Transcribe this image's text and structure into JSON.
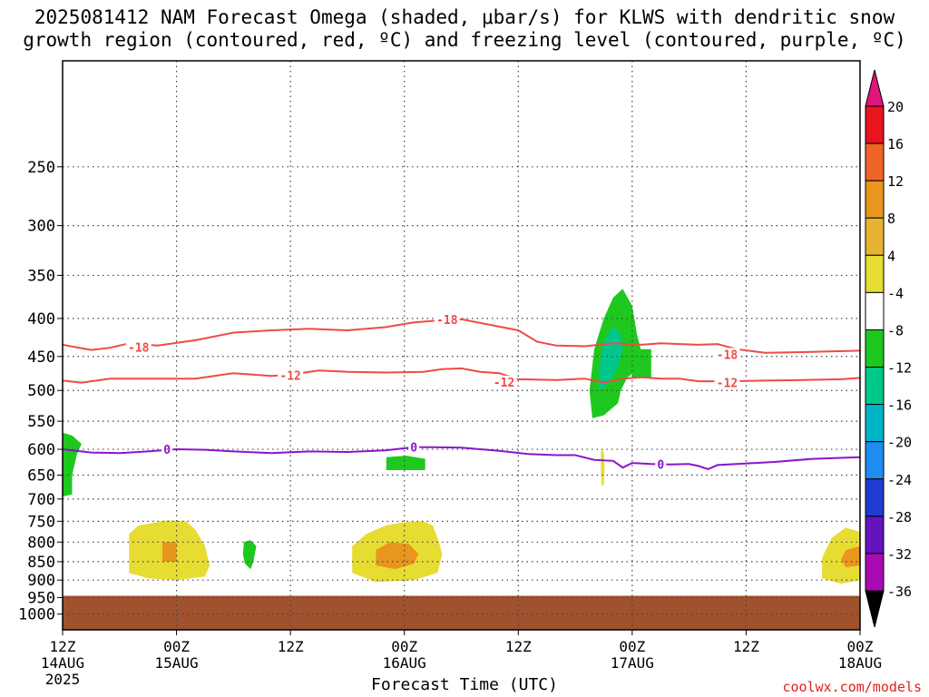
{
  "chart_data": {
    "type": "heatmap",
    "title_line1": "2025081412 NAM Forecast Omega (shaded, μbar/s) for KLWS with dendritic snow",
    "title_line2": "growth region (contoured, red, ºC) and freezing level (contoured, purple, ºC)",
    "xlabel": "Forecast Time (UTC)",
    "credit": "coolwx.com/models",
    "x_ticks": [
      {
        "t": 0,
        "top": "12Z",
        "mid": "14AUG",
        "bot": "2025"
      },
      {
        "t": 12,
        "top": "00Z",
        "mid": "15AUG",
        "bot": ""
      },
      {
        "t": 24,
        "top": "12Z",
        "mid": "",
        "bot": ""
      },
      {
        "t": 36,
        "top": "00Z",
        "mid": "16AUG",
        "bot": ""
      },
      {
        "t": 48,
        "top": "12Z",
        "mid": "",
        "bot": ""
      },
      {
        "t": 60,
        "top": "00Z",
        "mid": "17AUG",
        "bot": ""
      },
      {
        "t": 72,
        "top": "12Z",
        "mid": "",
        "bot": ""
      },
      {
        "t": 84,
        "top": "00Z",
        "mid": "18AUG",
        "bot": ""
      }
    ],
    "y_ticks": [
      250,
      300,
      350,
      400,
      450,
      500,
      550,
      600,
      650,
      700,
      750,
      800,
      850,
      900,
      950,
      1000
    ],
    "y_range_hPa": [
      1050,
      180
    ],
    "x_range_hours": [
      0,
      84
    ],
    "grid": true,
    "colorbar": {
      "labels": [
        "20",
        "16",
        "12",
        "8",
        "4",
        "-4",
        "-8",
        "-12",
        "-16",
        "-20",
        "-24",
        "-28",
        "-32",
        "-36"
      ],
      "colors": [
        "#e8141e",
        "#f06428",
        "#e8961e",
        "#e6b432",
        "#e6dc32",
        "#ffffff",
        "#1ec81e",
        "#00c88c",
        "#00b4c8",
        "#1e8cf0",
        "#1e3cd2",
        "#6414be",
        "#aa0ab4",
        "#a0a0a0"
      ],
      "top_color": "#e0147a",
      "bottom_color": "#000000"
    },
    "contours": [
      {
        "name": "-18",
        "color": "#f04a46",
        "points": [
          [
            0,
            434
          ],
          [
            3,
            441
          ],
          [
            5,
            438
          ],
          [
            7,
            432
          ],
          [
            10,
            435
          ],
          [
            14,
            428
          ],
          [
            18,
            418
          ],
          [
            22,
            415
          ],
          [
            26,
            413
          ],
          [
            30,
            415
          ],
          [
            34,
            411
          ],
          [
            37,
            405
          ],
          [
            40,
            402
          ],
          [
            42,
            401
          ],
          [
            45,
            408
          ],
          [
            48,
            415
          ],
          [
            50,
            430
          ],
          [
            52,
            435
          ],
          [
            55,
            436
          ],
          [
            58,
            432
          ],
          [
            61,
            434
          ],
          [
            63,
            432
          ],
          [
            65,
            433
          ],
          [
            67,
            434
          ],
          [
            69,
            433
          ],
          [
            71,
            440
          ],
          [
            74,
            445
          ],
          [
            78,
            444
          ],
          [
            84,
            442
          ]
        ],
        "labels": [
          {
            "t": 8.0,
            "p": 437,
            "text": "-18"
          },
          {
            "t": 40.5,
            "p": 401,
            "text": "-18"
          },
          {
            "t": 70.0,
            "p": 447,
            "text": "-18"
          }
        ]
      },
      {
        "name": "-12",
        "color": "#f04a46",
        "points": [
          [
            0,
            485
          ],
          [
            2,
            488
          ],
          [
            5,
            482
          ],
          [
            9,
            482
          ],
          [
            14,
            482
          ],
          [
            18,
            474
          ],
          [
            22,
            478
          ],
          [
            24,
            476
          ],
          [
            27,
            470
          ],
          [
            30,
            472
          ],
          [
            34,
            473
          ],
          [
            38,
            472
          ],
          [
            40,
            468
          ],
          [
            42,
            467
          ],
          [
            44,
            472
          ],
          [
            46,
            474
          ],
          [
            48,
            483
          ],
          [
            52,
            484
          ],
          [
            55,
            482
          ],
          [
            57,
            488
          ],
          [
            59,
            482
          ],
          [
            61,
            480
          ],
          [
            63,
            482
          ],
          [
            65,
            482
          ],
          [
            67,
            486
          ],
          [
            70,
            486
          ],
          [
            74,
            485
          ],
          [
            78,
            484
          ],
          [
            82,
            483
          ],
          [
            84,
            481
          ]
        ],
        "labels": [
          {
            "t": 24.0,
            "p": 477,
            "text": "-12"
          },
          {
            "t": 46.5,
            "p": 487,
            "text": "-12"
          },
          {
            "t": 70.0,
            "p": 488,
            "text": "-12"
          }
        ]
      },
      {
        "name": "0",
        "color": "#8c14c8",
        "points": [
          [
            0,
            600
          ],
          [
            3,
            606
          ],
          [
            6,
            607
          ],
          [
            9,
            604
          ],
          [
            12,
            600
          ],
          [
            15,
            601
          ],
          [
            18,
            604
          ],
          [
            22,
            607
          ],
          [
            26,
            604
          ],
          [
            30,
            605
          ],
          [
            34,
            602
          ],
          [
            37,
            596
          ],
          [
            39,
            596
          ],
          [
            42,
            597
          ],
          [
            46,
            603
          ],
          [
            49,
            609
          ],
          [
            52,
            611
          ],
          [
            54,
            611
          ],
          [
            56,
            620
          ],
          [
            58,
            622
          ],
          [
            59,
            635
          ],
          [
            60,
            626
          ],
          [
            62,
            628
          ],
          [
            64,
            629
          ],
          [
            66,
            628
          ],
          [
            67,
            632
          ],
          [
            68,
            638
          ],
          [
            69,
            630
          ],
          [
            71,
            628
          ],
          [
            75,
            624
          ],
          [
            79,
            618
          ],
          [
            84,
            615
          ]
        ],
        "labels": [
          {
            "t": 11.0,
            "p": 600,
            "text": "0"
          },
          {
            "t": 37.0,
            "p": 596,
            "text": "0"
          },
          {
            "t": 63.0,
            "p": 628,
            "text": "0"
          }
        ]
      }
    ],
    "shaded_regions": [
      {
        "name": "green-left",
        "color": "#1ec81e",
        "points": [
          [
            0,
            570
          ],
          [
            1,
            575
          ],
          [
            2,
            590
          ],
          [
            1.5,
            610
          ],
          [
            1,
            650
          ],
          [
            1,
            690
          ],
          [
            0,
            695
          ]
        ]
      },
      {
        "name": "yellow-15aug",
        "color": "#e6dc32",
        "points": [
          [
            7,
            780
          ],
          [
            8,
            760
          ],
          [
            11,
            748
          ],
          [
            13,
            750
          ],
          [
            14,
            770
          ],
          [
            15,
            810
          ],
          [
            15.5,
            860
          ],
          [
            15,
            890
          ],
          [
            12,
            900
          ],
          [
            9,
            895
          ],
          [
            7,
            880
          ],
          [
            7,
            830
          ]
        ]
      },
      {
        "name": "orange-15aug",
        "color": "#e8961e",
        "points": [
          [
            10.5,
            800
          ],
          [
            12,
            800
          ],
          [
            12,
            850
          ],
          [
            10.5,
            850
          ]
        ]
      },
      {
        "name": "green-15aug-small",
        "color": "#1ec81e",
        "points": [
          [
            19.1,
            800
          ],
          [
            19.8,
            795
          ],
          [
            20.4,
            810
          ],
          [
            20.1,
            850
          ],
          [
            19.8,
            870
          ],
          [
            19.2,
            855
          ],
          [
            19.0,
            830
          ]
        ]
      },
      {
        "name": "green-16aug-small",
        "color": "#1ec81e",
        "points": [
          [
            34.1,
            615
          ],
          [
            36.2,
            612
          ],
          [
            38.2,
            618
          ],
          [
            38.2,
            640
          ],
          [
            34.1,
            640
          ]
        ]
      },
      {
        "name": "yellow-16aug",
        "color": "#e6dc32",
        "points": [
          [
            30.5,
            810
          ],
          [
            32,
            780
          ],
          [
            34,
            760
          ],
          [
            36,
            752
          ],
          [
            38,
            750
          ],
          [
            39,
            760
          ],
          [
            39.5,
            790
          ],
          [
            40,
            830
          ],
          [
            39.5,
            880
          ],
          [
            37,
            900
          ],
          [
            33,
            905
          ],
          [
            30.5,
            880
          ]
        ]
      },
      {
        "name": "orange-16aug",
        "color": "#e8961e",
        "points": [
          [
            33,
            820
          ],
          [
            34.5,
            800
          ],
          [
            36.5,
            805
          ],
          [
            37.5,
            830
          ],
          [
            37,
            855
          ],
          [
            35,
            870
          ],
          [
            33,
            860
          ]
        ]
      },
      {
        "name": "green-17aug",
        "color": "#1ec81e",
        "points": [
          [
            55.5,
            500
          ],
          [
            56,
            440
          ],
          [
            57,
            400
          ],
          [
            58,
            375
          ],
          [
            59,
            365
          ],
          [
            60,
            385
          ],
          [
            60.5,
            420
          ],
          [
            61,
            445
          ],
          [
            60.5,
            470
          ],
          [
            59.5,
            480
          ],
          [
            58.8,
            500
          ],
          [
            58.5,
            520
          ],
          [
            57,
            540
          ],
          [
            55.8,
            545
          ]
        ]
      },
      {
        "name": "teal-17aug",
        "color": "#00c88c",
        "points": [
          [
            56.5,
            470
          ],
          [
            57,
            430
          ],
          [
            58,
            410
          ],
          [
            58.8,
            420
          ],
          [
            59,
            440
          ],
          [
            58.5,
            465
          ],
          [
            57.5,
            490
          ],
          [
            56.5,
            500
          ]
        ]
      },
      {
        "name": "green-17aug-right",
        "color": "#1ec81e",
        "points": [
          [
            60,
            440
          ],
          [
            62,
            440
          ],
          [
            62,
            480
          ],
          [
            60,
            482
          ]
        ]
      },
      {
        "name": "yellow-17aug-streak",
        "color": "#e6dc32",
        "points": [
          [
            56.7,
            600
          ],
          [
            57,
            605
          ],
          [
            57.1,
            640
          ],
          [
            57,
            670
          ],
          [
            56.8,
            672
          ],
          [
            56.7,
            640
          ]
        ]
      },
      {
        "name": "yellow-18aug",
        "color": "#e6dc32",
        "points": [
          [
            81,
            790
          ],
          [
            82.5,
            765
          ],
          [
            84,
            775
          ],
          [
            84,
            900
          ],
          [
            82,
            910
          ],
          [
            80,
            895
          ],
          [
            80,
            840
          ]
        ]
      },
      {
        "name": "orange-18aug",
        "color": "#e8961e",
        "points": [
          [
            82.5,
            820
          ],
          [
            84,
            810
          ],
          [
            84,
            860
          ],
          [
            82.5,
            865
          ],
          [
            82,
            845
          ]
        ]
      },
      {
        "name": "ground",
        "color": "#a0522d",
        "points": [
          [
            0,
            945
          ],
          [
            84,
            945
          ],
          [
            84,
            1050
          ],
          [
            0,
            1050
          ]
        ]
      }
    ]
  }
}
